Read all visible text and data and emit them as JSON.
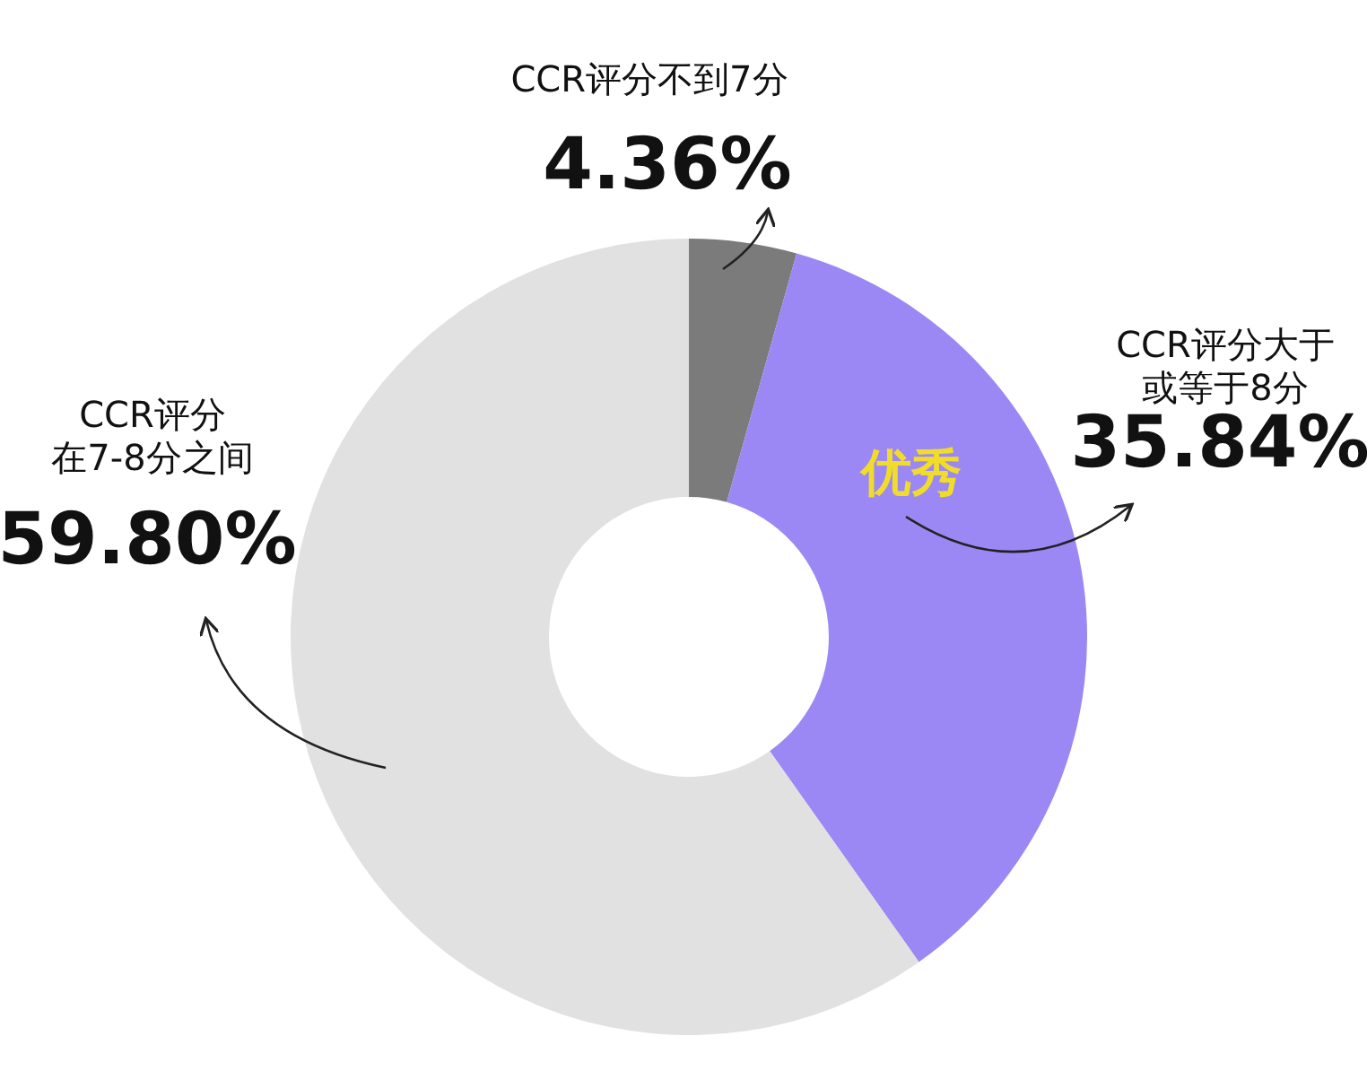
{
  "chart_data": {
    "type": "donut",
    "categories": [
      "CCR评分不到7分",
      "CCR评分大于或等于8分",
      "CCR评分在7-8分之间"
    ],
    "values": [
      4.36,
      35.84,
      59.8
    ],
    "colors": [
      "#7b7b7b",
      "#9c88f4",
      "#e1e1e1"
    ],
    "value_labels": [
      "4.36%",
      "35.84%",
      "59.80%"
    ],
    "annotations": [
      "优秀"
    ]
  }
}
